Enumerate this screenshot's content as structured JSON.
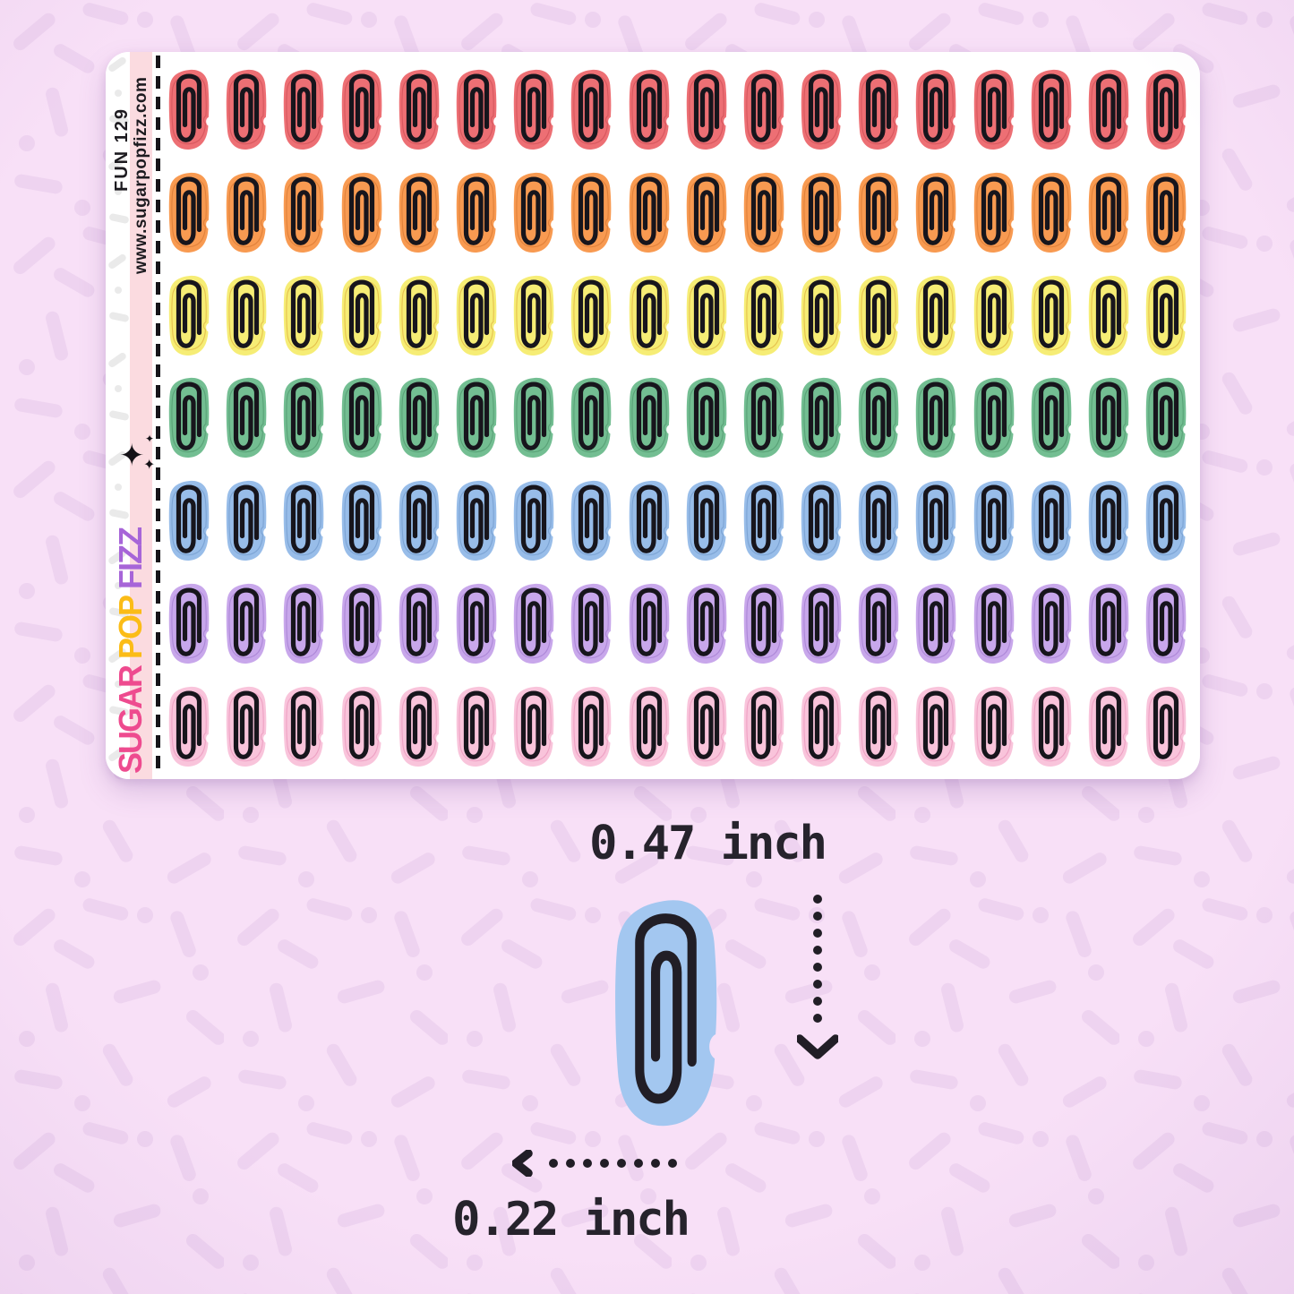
{
  "product": {
    "code": "FUN 129",
    "website": "www.sugarpopfizz.com",
    "brand": {
      "word_sugar": "SUGAR",
      "word_pop": "POP",
      "word_fizz": "FIZZ",
      "sugar_color": "#ee4b8f",
      "pop_color": "#fbbc17",
      "fizz_color": "#a765d8",
      "sparkle_glyph": "✦"
    }
  },
  "sheet": {
    "columns": 18,
    "row_count": 7,
    "clip_stroke": "#17151c",
    "strip_pink": "#fbdbe0",
    "rows": [
      {
        "color_name": "coral-red",
        "fill": "#ED6F74",
        "cut": "#d4555c"
      },
      {
        "color_name": "orange",
        "fill": "#F89A51",
        "cut": "#de7e37"
      },
      {
        "color_name": "yellow",
        "fill": "#F6ED75",
        "cut": "#e3bc4a"
      },
      {
        "color_name": "green",
        "fill": "#73BE92",
        "cut": "#569e74"
      },
      {
        "color_name": "blue",
        "fill": "#98BDE9",
        "cut": "#79a1d2"
      },
      {
        "color_name": "purple",
        "fill": "#C8A7EB",
        "cut": "#aa85d5"
      },
      {
        "color_name": "pink",
        "fill": "#F9C4DB",
        "cut": "#ec9fc1"
      }
    ]
  },
  "size_guide": {
    "height_label": "0.47 inch",
    "width_label": "0.22 inch",
    "sample_fill": "#a3c7f0",
    "arrow_color": "#211e26",
    "text_color": "#26232c"
  },
  "background": {
    "base": "#f8e0f7",
    "sprinkle": "#eed3f0",
    "band_sprinkle": "#eaeaea"
  }
}
